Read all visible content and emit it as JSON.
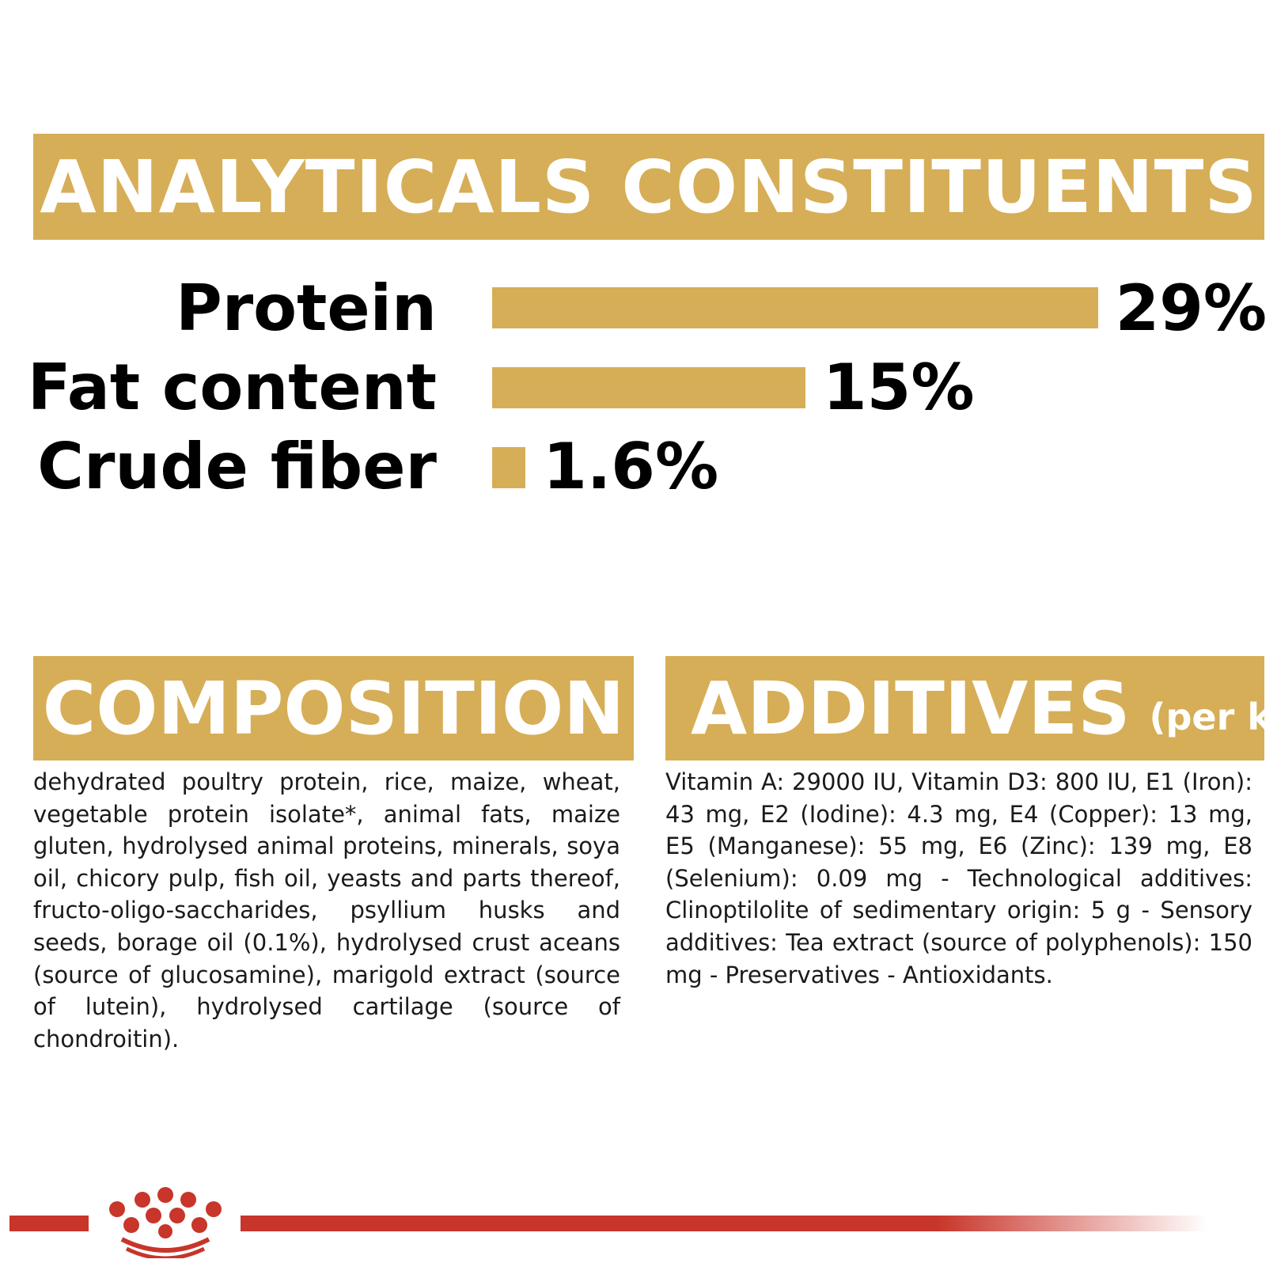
{
  "colors": {
    "gold": "#d6ae57",
    "red": "#c8352a",
    "text": "#1a1a1a"
  },
  "analytical": {
    "title": "ANALYTICALS CONSTITUENTS",
    "rows": [
      {
        "label": "Protein",
        "value": "29%",
        "percent": 29
      },
      {
        "label": "Fat content",
        "value": "15%",
        "percent": 15
      },
      {
        "label": "Crude fiber",
        "value": "1.6%",
        "percent": 1.6
      }
    ]
  },
  "composition": {
    "title": "COMPOSITION",
    "text": "dehydrated poultry protein, rice, maize, wheat, vegetable protein isolate*, animal fats, maize gluten, hydrolysed animal proteins, minerals, soya oil, chicory pulp, fish oil, yeasts and parts thereof, fructo-oligo-saccharides, psyllium husks and seeds, borage oil (0.1%), hydrolysed crust aceans (source of glucosamine), marigold extract (source of lutein), hydrolysed cartilage (source of chondroitin)."
  },
  "additives": {
    "title": "ADDITIVES",
    "subtitle": "(per kg)",
    "text": "Vitamin A: 29000 IU, Vitamin D3: 800 IU, E1 (Iron): 43 mg, E2 (Iodine): 4.3 mg, E4 (Copper): 13 mg, E5 (Manganese): 55 mg, E6 (Zinc): 139 mg, E8 (Selenium): 0.09 mg - Technological additives: Clinoptilolite of sedimentary origin: 5 g - Sensory additives: Tea extract (source of polyphenols): 150 mg - Preservatives - Antioxidants."
  },
  "logo": {
    "icon": "royal-canin-crown-icon"
  }
}
